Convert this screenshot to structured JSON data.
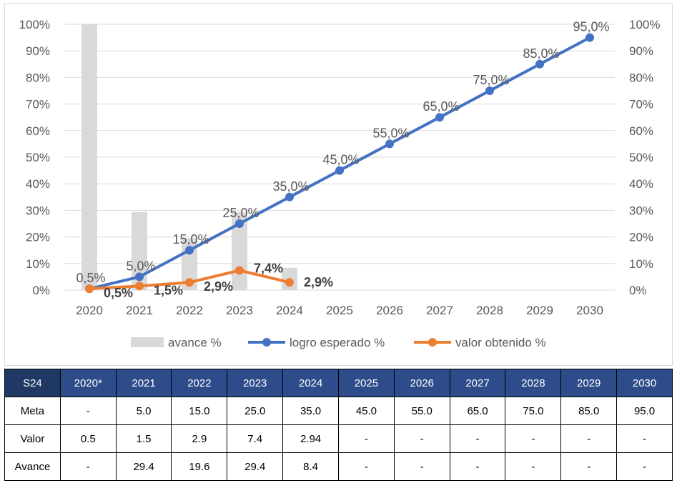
{
  "chart_data": {
    "type": "bar+line",
    "categories": [
      "2020",
      "2021",
      "2022",
      "2023",
      "2024",
      "2025",
      "2026",
      "2027",
      "2028",
      "2029",
      "2030"
    ],
    "y_left": {
      "min": 0,
      "max": 100,
      "step": 10,
      "format": "percent"
    },
    "y_right": {
      "min": 0,
      "max": 100,
      "step": 10,
      "format": "percent"
    },
    "grid": true,
    "legend_position": "bottom",
    "series": [
      {
        "name": "avance %",
        "kind": "bar",
        "color": "#d9d9d9",
        "values": [
          100,
          29.4,
          19.6,
          29.4,
          8.4,
          null,
          null,
          null,
          null,
          null,
          null
        ]
      },
      {
        "name": "logro esperado %",
        "kind": "line",
        "color": "#4472c4",
        "values": [
          0.5,
          5.0,
          15.0,
          25.0,
          35.0,
          45.0,
          55.0,
          65.0,
          75.0,
          85.0,
          95.0
        ],
        "labels": [
          "0,5%",
          "5,0%",
          "15,0%",
          "25,0%",
          "35,0%",
          "45,0%",
          "55,0%",
          "65,0%",
          "75,0%",
          "85,0%",
          "95,0%"
        ]
      },
      {
        "name": "valor obtenido %",
        "kind": "line",
        "color": "#ed7d31",
        "values": [
          0.5,
          1.5,
          2.9,
          7.4,
          2.9,
          null,
          null,
          null,
          null,
          null,
          null
        ],
        "labels": [
          "0,5%",
          "1,5%",
          "2,9%",
          "7,4%",
          "2,9%"
        ]
      }
    ]
  },
  "table": {
    "header": [
      "S24",
      "2020*",
      "2021",
      "2022",
      "2023",
      "2024",
      "2025",
      "2026",
      "2027",
      "2028",
      "2029",
      "2030"
    ],
    "rows": [
      [
        "Meta",
        "-",
        "5.0",
        "15.0",
        "25.0",
        "35.0",
        "45.0",
        "55.0",
        "65.0",
        "75.0",
        "85.0",
        "95.0"
      ],
      [
        "Valor",
        "0.5",
        "1.5",
        "2.9",
        "7.4",
        "2.94",
        "-",
        "-",
        "-",
        "-",
        "-",
        "-"
      ],
      [
        "Avance",
        "-",
        "29.4",
        "19.6",
        "29.4",
        "8.4",
        "-",
        "-",
        "-",
        "-",
        "-",
        "-"
      ]
    ]
  }
}
